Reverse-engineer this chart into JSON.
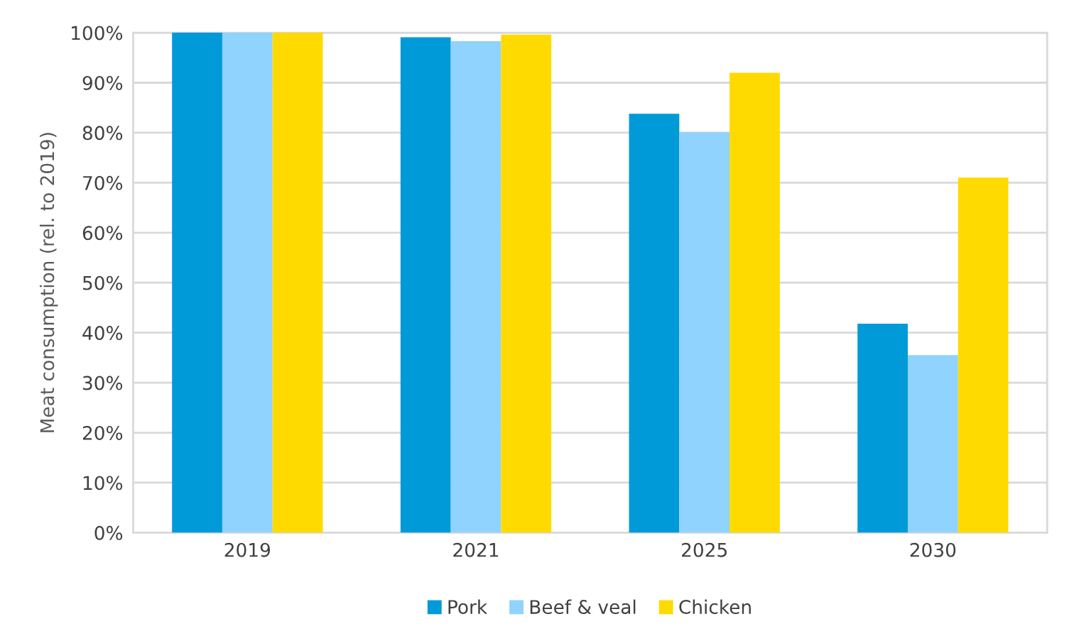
{
  "chart_data": {
    "type": "bar",
    "ylabel": "Meat consumption (rel. to 2019)",
    "categories": [
      "2019",
      "2021",
      "2025",
      "2030"
    ],
    "series": [
      {
        "name": "Pork",
        "color": "#009ad8",
        "values": [
          100,
          99.1,
          83.8,
          41.8
        ]
      },
      {
        "name": "Beef & veal",
        "color": "#8fd3fe",
        "values": [
          100,
          98.3,
          80.1,
          35.5
        ]
      },
      {
        "name": "Chicken",
        "color": "#ffda00",
        "values": [
          100,
          99.6,
          92.0,
          71.0
        ]
      }
    ],
    "ylim": [
      0,
      100
    ],
    "yticks": [
      {
        "value": 0,
        "label": "0%"
      },
      {
        "value": 10,
        "label": "10%"
      },
      {
        "value": 20,
        "label": "20%"
      },
      {
        "value": 30,
        "label": "30%"
      },
      {
        "value": 40,
        "label": "40%"
      },
      {
        "value": 50,
        "label": "50%"
      },
      {
        "value": 60,
        "label": "60%"
      },
      {
        "value": 70,
        "label": "70%"
      },
      {
        "value": 80,
        "label": "80%"
      },
      {
        "value": 90,
        "label": "90%"
      },
      {
        "value": 100,
        "label": "100%"
      }
    ],
    "grid": "y",
    "legend": "bottom"
  }
}
